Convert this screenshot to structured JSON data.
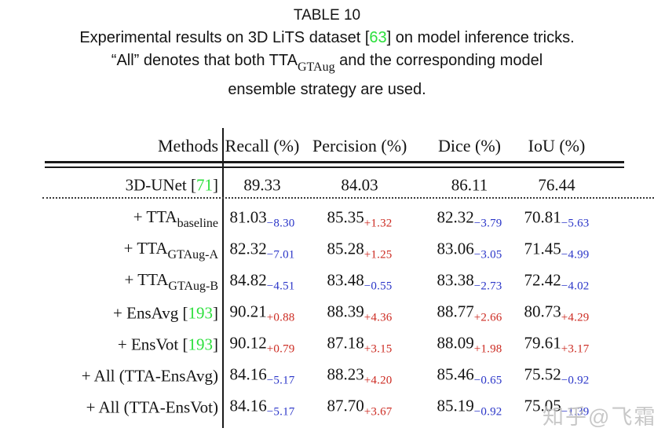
{
  "colors": {
    "green": "#2ce03c",
    "blue": "#2a35c8",
    "red": "#cc2a21",
    "text": "#141414",
    "watermark": "#bfbfbf"
  },
  "caption": {
    "label": "TABLE 10",
    "lines": [
      [
        {
          "t": "Experimental results on 3D LiTS dataset ["
        },
        {
          "cite": "63"
        },
        {
          "t": "] on model inference tricks."
        }
      ],
      [
        {
          "t": "“All” denotes that both TTA"
        },
        {
          "sub": "GTAug"
        },
        {
          "t": " and the corresponding model"
        }
      ],
      [
        {
          "t": "ensemble strategy are used."
        }
      ]
    ]
  },
  "table": {
    "headers": [
      "Methods",
      "Recall (%)",
      "Percision (%)",
      "Dice (%)",
      "IoU (%)"
    ],
    "rows": [
      {
        "method": [
          {
            "t": "3D-UNet ["
          },
          {
            "cite": "71"
          },
          {
            "t": "]"
          }
        ],
        "cells": [
          {
            "v": "89.33"
          },
          {
            "v": "84.03"
          },
          {
            "v": "86.11"
          },
          {
            "v": "76.44"
          }
        ]
      },
      {
        "method": [
          {
            "t": "+ TTA"
          },
          {
            "sub": "baseline"
          }
        ],
        "cells": [
          {
            "v": "81.03",
            "d": "−8.30"
          },
          {
            "v": "85.35",
            "d": "+1.32"
          },
          {
            "v": "82.32",
            "d": "−3.79"
          },
          {
            "v": "70.81",
            "d": "−5.63"
          }
        ]
      },
      {
        "method": [
          {
            "t": "+ TTA"
          },
          {
            "sub": "GTAug-A"
          }
        ],
        "cells": [
          {
            "v": "82.32",
            "d": "−7.01"
          },
          {
            "v": "85.28",
            "d": "+1.25"
          },
          {
            "v": "83.06",
            "d": "−3.05"
          },
          {
            "v": "71.45",
            "d": "−4.99"
          }
        ]
      },
      {
        "method": [
          {
            "t": "+ TTA"
          },
          {
            "sub": "GTAug-B"
          }
        ],
        "cells": [
          {
            "v": "84.82",
            "d": "−4.51"
          },
          {
            "v": "83.48",
            "d": "−0.55"
          },
          {
            "v": "83.38",
            "d": "−2.73"
          },
          {
            "v": "72.42",
            "d": "−4.02"
          }
        ]
      },
      {
        "method": [
          {
            "t": "+ EnsAvg ["
          },
          {
            "cite": "193"
          },
          {
            "t": "]"
          }
        ],
        "cells": [
          {
            "v": "90.21",
            "d": "+0.88"
          },
          {
            "v": "88.39",
            "d": "+4.36"
          },
          {
            "v": "88.77",
            "d": "+2.66"
          },
          {
            "v": "80.73",
            "d": "+4.29"
          }
        ]
      },
      {
        "method": [
          {
            "t": "+ EnsVot ["
          },
          {
            "cite": "193"
          },
          {
            "t": "]"
          }
        ],
        "cells": [
          {
            "v": "90.12",
            "d": "+0.79"
          },
          {
            "v": "87.18",
            "d": "+3.15"
          },
          {
            "v": "88.09",
            "d": "+1.98"
          },
          {
            "v": "79.61",
            "d": "+3.17"
          }
        ]
      },
      {
        "method": [
          {
            "t": "+ All (TTA-EnsAvg)"
          }
        ],
        "cells": [
          {
            "v": "84.16",
            "d": "−5.17"
          },
          {
            "v": "88.23",
            "d": "+4.20"
          },
          {
            "v": "85.46",
            "d": "−0.65"
          },
          {
            "v": "75.52",
            "d": "−0.92"
          }
        ]
      },
      {
        "method": [
          {
            "t": "+ All (TTA-EnsVot)"
          }
        ],
        "cells": [
          {
            "v": "84.16",
            "d": "−5.17"
          },
          {
            "v": "87.70",
            "d": "+3.67"
          },
          {
            "v": "85.19",
            "d": "−0.92"
          },
          {
            "v": "75.05",
            "d": "−1.39"
          }
        ]
      }
    ]
  },
  "watermark": {
    "text": "知乎@飞霜"
  }
}
